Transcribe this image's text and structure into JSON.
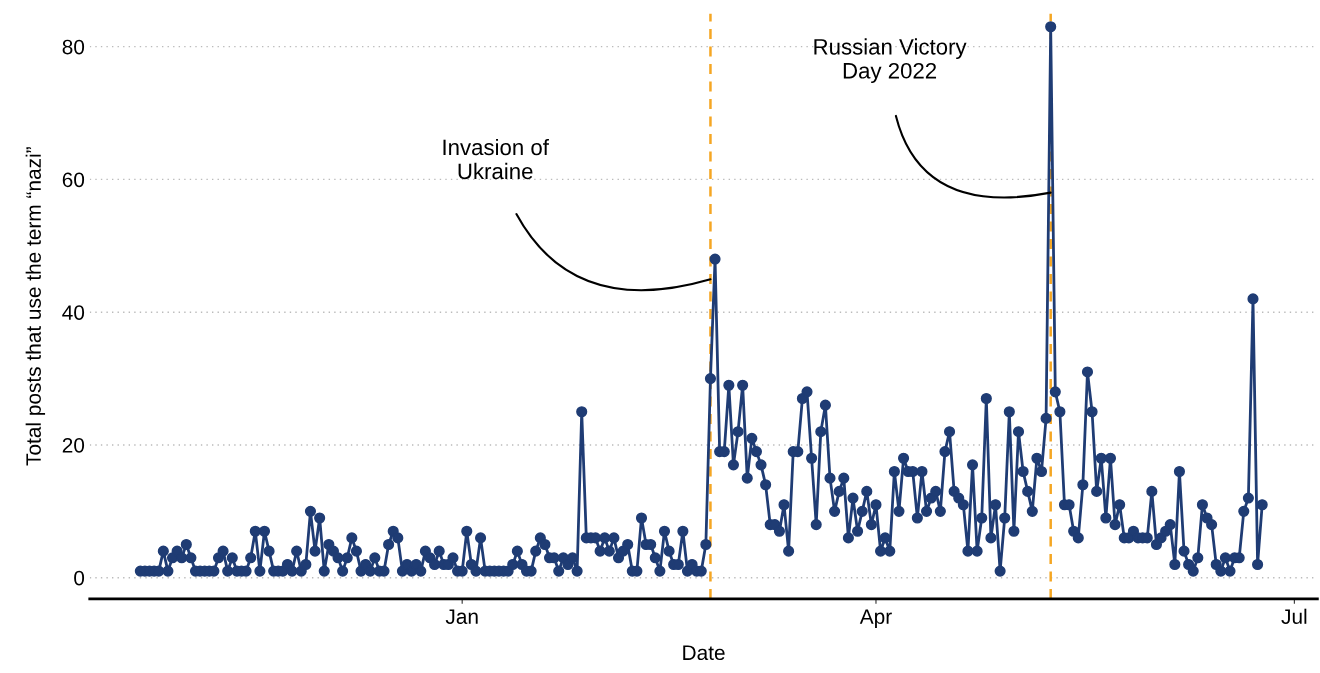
{
  "chart_data": {
    "type": "line",
    "xlabel": "Date",
    "ylabel": "Total posts that use the term “nazi”",
    "x": [
      "2021-10-23",
      "2021-10-24",
      "2021-10-25",
      "2021-10-26",
      "2021-10-27",
      "2021-10-28",
      "2021-10-29",
      "2021-10-30",
      "2021-10-31",
      "2021-11-01",
      "2021-11-02",
      "2021-11-03",
      "2021-11-04",
      "2021-11-05",
      "2021-11-06",
      "2021-11-07",
      "2021-11-08",
      "2021-11-09",
      "2021-11-10",
      "2021-11-11",
      "2021-11-12",
      "2021-11-13",
      "2021-11-14",
      "2021-11-15",
      "2021-11-16",
      "2021-11-17",
      "2021-11-18",
      "2021-11-19",
      "2021-11-20",
      "2021-11-21",
      "2021-11-22",
      "2021-11-23",
      "2021-11-24",
      "2021-11-25",
      "2021-11-26",
      "2021-11-27",
      "2021-11-28",
      "2021-11-29",
      "2021-11-30",
      "2021-12-01",
      "2021-12-02",
      "2021-12-03",
      "2021-12-04",
      "2021-12-05",
      "2021-12-06",
      "2021-12-07",
      "2021-12-08",
      "2021-12-09",
      "2021-12-10",
      "2021-12-11",
      "2021-12-12",
      "2021-12-13",
      "2021-12-14",
      "2021-12-15",
      "2021-12-16",
      "2021-12-17",
      "2021-12-18",
      "2021-12-19",
      "2021-12-20",
      "2021-12-21",
      "2021-12-22",
      "2021-12-23",
      "2021-12-24",
      "2021-12-25",
      "2021-12-26",
      "2021-12-27",
      "2021-12-28",
      "2021-12-29",
      "2021-12-30",
      "2021-12-31",
      "2022-01-01",
      "2022-01-02",
      "2022-01-03",
      "2022-01-04",
      "2022-01-05",
      "2022-01-06",
      "2022-01-07",
      "2022-01-08",
      "2022-01-09",
      "2022-01-10",
      "2022-01-11",
      "2022-01-12",
      "2022-01-13",
      "2022-01-14",
      "2022-01-15",
      "2022-01-16",
      "2022-01-17",
      "2022-01-18",
      "2022-01-19",
      "2022-01-20",
      "2022-01-21",
      "2022-01-22",
      "2022-01-23",
      "2022-01-24",
      "2022-01-25",
      "2022-01-26",
      "2022-01-27",
      "2022-01-28",
      "2022-01-29",
      "2022-01-30",
      "2022-01-31",
      "2022-02-01",
      "2022-02-02",
      "2022-02-03",
      "2022-02-04",
      "2022-02-05",
      "2022-02-06",
      "2022-02-07",
      "2022-02-08",
      "2022-02-09",
      "2022-02-10",
      "2022-02-11",
      "2022-02-12",
      "2022-02-13",
      "2022-02-14",
      "2022-02-15",
      "2022-02-16",
      "2022-02-17",
      "2022-02-18",
      "2022-02-19",
      "2022-02-20",
      "2022-02-21",
      "2022-02-22",
      "2022-02-23",
      "2022-02-24",
      "2022-02-25",
      "2022-02-26",
      "2022-02-27",
      "2022-02-28",
      "2022-03-01",
      "2022-03-02",
      "2022-03-03",
      "2022-03-04",
      "2022-03-05",
      "2022-03-06",
      "2022-03-07",
      "2022-03-08",
      "2022-03-09",
      "2022-03-10",
      "2022-03-11",
      "2022-03-12",
      "2022-03-13",
      "2022-03-14",
      "2022-03-15",
      "2022-03-16",
      "2022-03-17",
      "2022-03-18",
      "2022-03-19",
      "2022-03-20",
      "2022-03-21",
      "2022-03-22",
      "2022-03-23",
      "2022-03-24",
      "2022-03-25",
      "2022-03-26",
      "2022-03-27",
      "2022-03-28",
      "2022-03-29",
      "2022-03-30",
      "2022-03-31",
      "2022-04-01",
      "2022-04-02",
      "2022-04-03",
      "2022-04-04",
      "2022-04-05",
      "2022-04-06",
      "2022-04-07",
      "2022-04-08",
      "2022-04-09",
      "2022-04-10",
      "2022-04-11",
      "2022-04-12",
      "2022-04-13",
      "2022-04-14",
      "2022-04-15",
      "2022-04-16",
      "2022-04-17",
      "2022-04-18",
      "2022-04-19",
      "2022-04-20",
      "2022-04-21",
      "2022-04-22",
      "2022-04-23",
      "2022-04-24",
      "2022-04-25",
      "2022-04-26",
      "2022-04-27",
      "2022-04-28",
      "2022-04-29",
      "2022-04-30",
      "2022-05-01",
      "2022-05-02",
      "2022-05-03",
      "2022-05-04",
      "2022-05-05",
      "2022-05-06",
      "2022-05-07",
      "2022-05-08",
      "2022-05-09",
      "2022-05-10",
      "2022-05-11",
      "2022-05-12",
      "2022-05-13",
      "2022-05-14",
      "2022-05-15",
      "2022-05-16",
      "2022-05-17",
      "2022-05-18",
      "2022-05-19",
      "2022-05-20",
      "2022-05-21",
      "2022-05-22",
      "2022-05-23",
      "2022-05-24",
      "2022-05-25",
      "2022-05-26",
      "2022-05-27",
      "2022-05-28",
      "2022-05-29",
      "2022-05-30",
      "2022-05-31",
      "2022-06-01",
      "2022-06-02",
      "2022-06-03",
      "2022-06-04",
      "2022-06-05",
      "2022-06-06",
      "2022-06-07",
      "2022-06-08",
      "2022-06-09",
      "2022-06-10",
      "2022-06-11",
      "2022-06-12",
      "2022-06-13",
      "2022-06-14",
      "2022-06-15",
      "2022-06-16",
      "2022-06-17",
      "2022-06-18",
      "2022-06-19",
      "2022-06-20",
      "2022-06-21",
      "2022-06-22",
      "2022-06-23",
      "2022-06-24"
    ],
    "series": [
      {
        "color": "#1f3c74",
        "values": [
          1,
          1,
          1,
          1,
          1,
          4,
          1,
          3,
          4,
          3,
          5,
          3,
          1,
          1,
          1,
          1,
          1,
          3,
          4,
          1,
          3,
          1,
          1,
          1,
          3,
          7,
          1,
          7,
          4,
          1,
          1,
          1,
          2,
          1,
          4,
          1,
          2,
          10,
          4,
          9,
          1,
          5,
          4,
          3,
          1,
          3,
          6,
          4,
          1,
          2,
          1,
          3,
          1,
          1,
          5,
          7,
          6,
          1,
          2,
          1,
          2,
          1,
          4,
          3,
          2,
          4,
          2,
          2,
          3,
          1,
          1,
          7,
          2,
          1,
          6,
          1,
          1,
          1,
          1,
          1,
          1,
          2,
          4,
          2,
          1,
          1,
          4,
          6,
          5,
          3,
          3,
          1,
          3,
          2,
          3,
          1,
          25,
          6,
          6,
          6,
          4,
          6,
          4,
          6,
          3,
          4,
          5,
          1,
          1,
          9,
          5,
          5,
          3,
          1,
          7,
          4,
          2,
          2,
          7,
          1,
          2,
          1,
          1,
          5,
          30,
          48,
          19,
          19,
          29,
          17,
          22,
          29,
          15,
          21,
          19,
          17,
          14,
          8,
          8,
          7,
          11,
          4,
          19,
          19,
          27,
          28,
          18,
          8,
          22,
          26,
          15,
          10,
          13,
          15,
          6,
          12,
          7,
          10,
          13,
          8,
          11,
          4,
          6,
          4,
          16,
          10,
          18,
          16,
          16,
          9,
          16,
          10,
          12,
          13,
          10,
          19,
          22,
          13,
          12,
          11,
          4,
          17,
          4,
          9,
          27,
          6,
          11,
          1,
          9,
          25,
          7,
          22,
          16,
          13,
          10,
          18,
          16,
          24,
          83,
          28,
          25,
          11,
          11,
          7,
          6,
          14,
          31,
          25,
          13,
          18,
          9,
          18,
          8,
          11,
          6,
          6,
          7,
          6,
          6,
          6,
          13,
          5,
          6,
          7,
          8,
          2,
          16,
          4,
          2,
          1,
          3,
          11,
          9,
          8,
          2,
          1,
          3,
          1,
          3,
          3,
          10,
          12,
          42,
          2,
          11
        ]
      }
    ],
    "marker": "circle",
    "line_style": "solid",
    "xlim": [
      "2021-10-12",
      "2022-07-06"
    ],
    "xticks": [
      {
        "value": "2022-01-01",
        "label": "Jan"
      },
      {
        "value": "2022-04-01",
        "label": "Apr"
      },
      {
        "value": "2022-07-01",
        "label": "Jul"
      }
    ],
    "ylim": [
      -3.2,
      85
    ],
    "yticks": [
      0,
      20,
      40,
      60,
      80
    ],
    "grid": "y",
    "ref_lines": [
      {
        "axis": "x",
        "value": "2022-02-24",
        "color": "#f5a623",
        "line_style": "dashed"
      },
      {
        "axis": "x",
        "value": "2022-05-09",
        "color": "#f5a623",
        "line_style": "dashed"
      }
    ],
    "annotations": [
      "Invasion of\nUkraine",
      "Russian Victory\nDay 2022"
    ]
  }
}
